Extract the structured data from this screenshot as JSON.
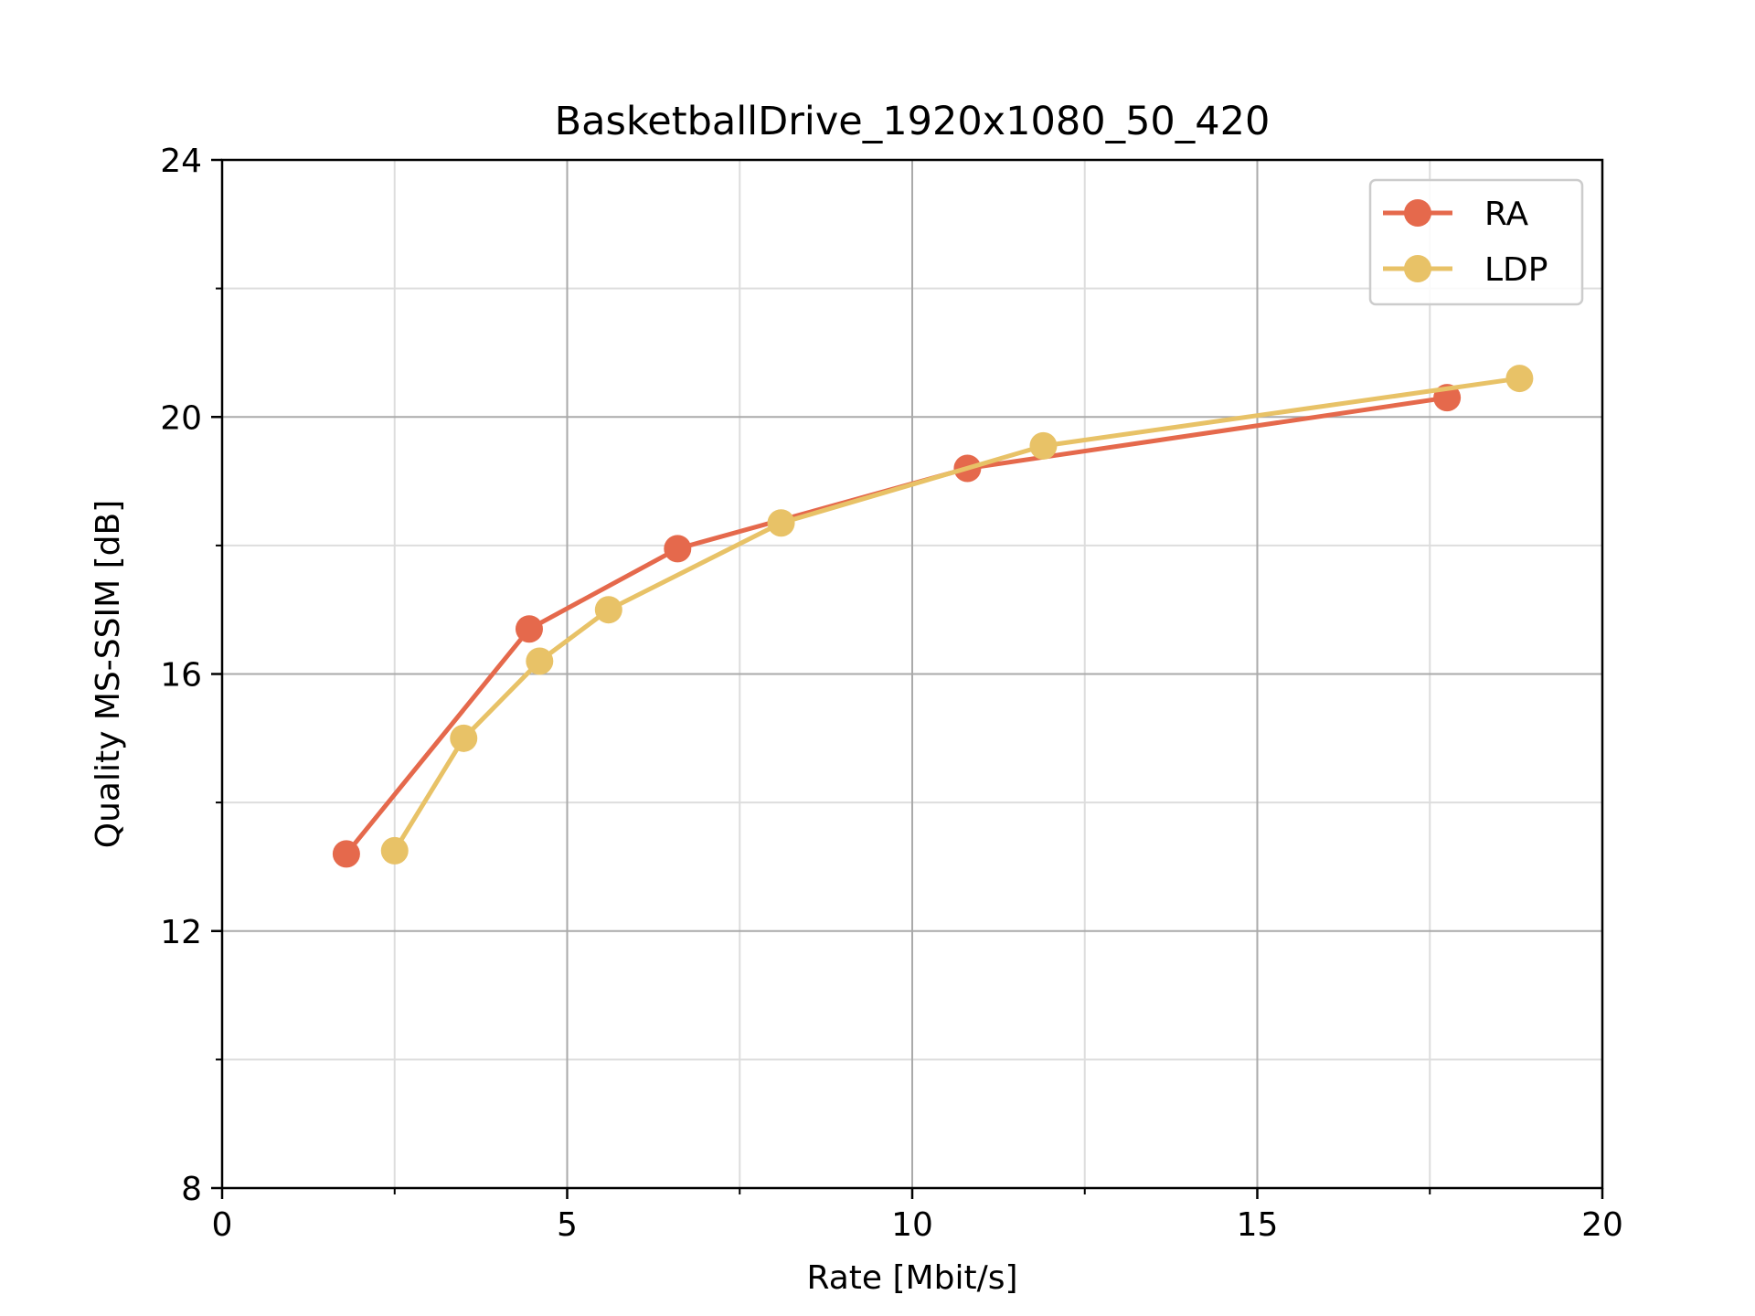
{
  "chart_data": {
    "type": "line",
    "title": "BasketballDrive_1920x1080_50_420",
    "xlabel": "Rate [Mbit/s]",
    "ylabel": "Quality MS-SSIM [dB]",
    "xlim": [
      0,
      20
    ],
    "ylim": [
      8,
      24
    ],
    "xticks": [
      0,
      5,
      10,
      15,
      20
    ],
    "xtick_labels": [
      "0",
      "5",
      "10",
      "15",
      "20"
    ],
    "yticks": [
      8,
      12,
      16,
      20,
      24
    ],
    "ytick_labels": [
      "8",
      "12",
      "16",
      "20",
      "24"
    ],
    "x_minor_step": 2.5,
    "y_minor_step": 2,
    "grid": true,
    "legend_position": "top-right",
    "series": [
      {
        "name": "RA",
        "color": "#e5694c",
        "x": [
          1.8,
          4.45,
          6.6,
          10.8,
          17.75
        ],
        "y": [
          13.2,
          16.7,
          17.95,
          19.2,
          20.3
        ]
      },
      {
        "name": "LDP",
        "color": "#e8c267",
        "x": [
          2.5,
          3.5,
          4.6,
          5.6,
          8.1,
          11.9,
          18.8
        ],
        "y": [
          13.25,
          15.0,
          16.2,
          17.0,
          18.35,
          19.55,
          20.6
        ]
      }
    ]
  }
}
